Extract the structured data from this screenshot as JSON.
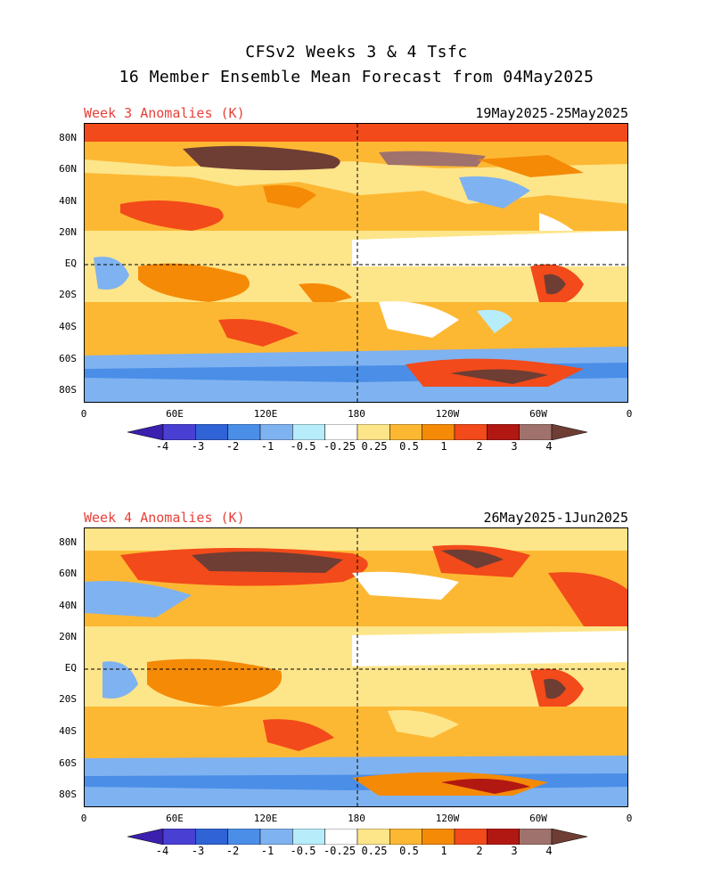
{
  "title_line1": "CFSv2 Weeks 3 & 4 Tsfc",
  "title_line2": "16 Member Ensemble Mean Forecast from 04May2025",
  "panels": [
    {
      "label": "Week 3 Anomalies (K)",
      "dates": "19May2025-25May2025"
    },
    {
      "label": "Week 4 Anomalies (K)",
      "dates": "26May2025-1Jun2025"
    }
  ],
  "y_ticks": [
    "80N",
    "60N",
    "40N",
    "20N",
    "EQ",
    "20S",
    "40S",
    "60S",
    "80S"
  ],
  "x_ticks": [
    "0",
    "60E",
    "120E",
    "180",
    "120W",
    "60W",
    "0"
  ],
  "colorbar": {
    "ticks": [
      "-4",
      "-3",
      "-2",
      "-1",
      "-0.5",
      "-0.25",
      "0.25",
      "0.5",
      "1",
      "2",
      "3",
      "4"
    ],
    "colors": [
      "#3b1fae",
      "#4a3fd3",
      "#2f63d6",
      "#4a8ee8",
      "#7fb2f0",
      "#b7ecfb",
      "#ffffff",
      "#fde58a",
      "#fdb833",
      "#f58a06",
      "#f24a1a",
      "#b21812",
      "#a0726d",
      "#6e3d34"
    ]
  }
}
